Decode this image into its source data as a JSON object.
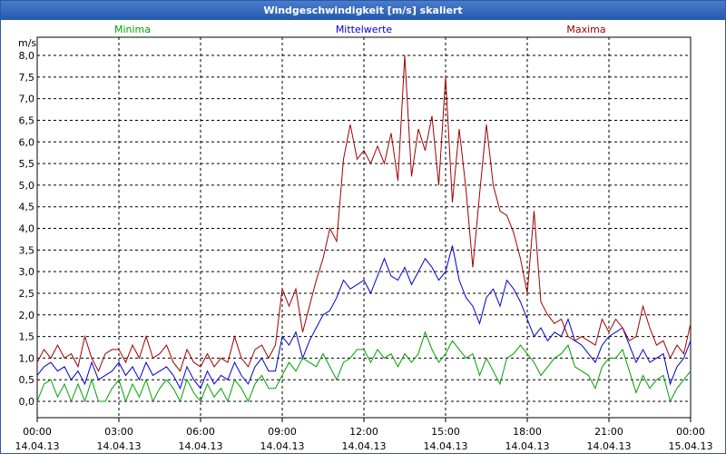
{
  "window": {
    "title": "Windgeschwindigkeit [m/s] skaliert"
  },
  "chart_data": {
    "type": "line",
    "title": "Windgeschwindigkeit [m/s] skaliert",
    "ylabel": "m/s",
    "xlabel": "",
    "ylim": [
      0,
      8
    ],
    "xlim": [
      0,
      24
    ],
    "grid": true,
    "legend_placement": "top",
    "yticks": [
      0,
      0.5,
      1,
      1.5,
      2,
      2.5,
      3,
      3.5,
      4,
      4.5,
      5,
      5.5,
      6,
      6.5,
      7,
      7.5,
      8
    ],
    "ytick_labels": [
      "0,0",
      "0,5",
      "1,0",
      "1,5",
      "2,0",
      "2,5",
      "3,0",
      "3,5",
      "4,0",
      "4,5",
      "5,0",
      "5,5",
      "6,0",
      "6,5",
      "7,0",
      "7,5",
      "8,0"
    ],
    "xticks": [
      0,
      3,
      6,
      9,
      12,
      15,
      18,
      21,
      24
    ],
    "xtick_times": [
      "00:00",
      "03:00",
      "06:00",
      "09:00",
      "12:00",
      "15:00",
      "18:00",
      "21:00",
      "00:00"
    ],
    "xtick_dates": [
      "14.04.13",
      "14.04.13",
      "14.04.13",
      "14.04.13",
      "14.04.13",
      "14.04.13",
      "14.04.13",
      "14.04.13",
      "15.04.13"
    ],
    "x": [
      0,
      0.25,
      0.5,
      0.75,
      1,
      1.25,
      1.5,
      1.75,
      2,
      2.25,
      2.5,
      2.75,
      3,
      3.25,
      3.5,
      3.75,
      4,
      4.25,
      4.5,
      4.75,
      5,
      5.25,
      5.5,
      5.75,
      6,
      6.25,
      6.5,
      6.75,
      7,
      7.25,
      7.5,
      7.75,
      8,
      8.25,
      8.5,
      8.75,
      9,
      9.25,
      9.5,
      9.75,
      10,
      10.25,
      10.5,
      10.75,
      11,
      11.25,
      11.5,
      11.75,
      12,
      12.25,
      12.5,
      12.75,
      13,
      13.25,
      13.5,
      13.75,
      14,
      14.25,
      14.5,
      14.75,
      15,
      15.25,
      15.5,
      15.75,
      16,
      16.25,
      16.5,
      16.75,
      17,
      17.25,
      17.5,
      17.75,
      18,
      18.25,
      18.5,
      18.75,
      19,
      19.25,
      19.5,
      19.75,
      20,
      20.25,
      20.5,
      20.75,
      21,
      21.25,
      21.5,
      21.75,
      22,
      22.25,
      22.5,
      22.75,
      23,
      23.25,
      23.5,
      23.75,
      24
    ],
    "series": [
      {
        "name": "Minima",
        "color": "#00a000",
        "values": [
          0,
          0.4,
          0.5,
          0.1,
          0.4,
          0,
          0.4,
          0,
          0.5,
          0,
          0,
          0.3,
          0.5,
          0,
          0.4,
          0.1,
          0.5,
          0,
          0.3,
          0.5,
          0.3,
          0,
          0.5,
          0.2,
          0,
          0.4,
          0.1,
          0.3,
          0,
          0.5,
          0.3,
          0,
          0.4,
          0.6,
          0.3,
          0.3,
          0.6,
          0.9,
          0.7,
          1.0,
          0.9,
          0.8,
          1.1,
          0.8,
          0.5,
          0.9,
          1.0,
          1.2,
          1.2,
          0.9,
          1.2,
          1.0,
          1.1,
          0.8,
          1.1,
          0.9,
          1.1,
          1.6,
          1.2,
          0.9,
          1.1,
          1.4,
          1.2,
          1.0,
          1.1,
          0.6,
          1.0,
          0.7,
          0.4,
          1.0,
          1.1,
          1.3,
          1.1,
          0.9,
          0.6,
          0.8,
          1.0,
          1.1,
          1.3,
          0.8,
          0.7,
          0.6,
          0.3,
          0.8,
          1.0,
          1.0,
          1.2,
          0.7,
          0.2,
          0.6,
          0.3,
          0.5,
          0.6,
          0,
          0.3,
          0.5,
          0.7
        ]
      },
      {
        "name": "Mittelwerte",
        "color": "#0000d0",
        "values": [
          0.6,
          0.8,
          0.9,
          0.7,
          0.8,
          0.5,
          0.7,
          0.4,
          0.9,
          0.5,
          0.6,
          0.7,
          0.9,
          0.6,
          0.8,
          0.5,
          0.9,
          0.6,
          0.7,
          0.8,
          0.6,
          0.3,
          0.8,
          0.5,
          0.3,
          0.7,
          0.4,
          0.6,
          0.5,
          0.9,
          0.6,
          0.4,
          0.8,
          1.0,
          0.7,
          0.7,
          1.5,
          1.3,
          1.6,
          1.0,
          1.4,
          1.7,
          2.0,
          2.1,
          2.4,
          2.8,
          2.6,
          2.7,
          2.8,
          2.5,
          2.9,
          3.3,
          2.9,
          2.8,
          3.1,
          2.7,
          3.0,
          3.3,
          3.1,
          2.8,
          3.0,
          3.6,
          2.8,
          2.4,
          2.2,
          1.8,
          2.4,
          2.6,
          2.2,
          2.8,
          2.6,
          2.3,
          1.9,
          1.5,
          1.7,
          1.4,
          1.6,
          1.5,
          1.9,
          1.4,
          1.3,
          1.1,
          0.9,
          1.3,
          1.5,
          1.6,
          1.7,
          1.3,
          0.9,
          1.2,
          0.9,
          1.0,
          1.1,
          0.4,
          0.8,
          1.0,
          1.4
        ]
      },
      {
        "name": "Maxima",
        "color": "#a00000",
        "values": [
          0.9,
          1.2,
          1.0,
          1.3,
          1.0,
          1.1,
          0.8,
          1.5,
          1.0,
          0.7,
          1.1,
          1.2,
          1.2,
          0.9,
          1.3,
          1.0,
          1.5,
          1.0,
          1.1,
          1.3,
          0.9,
          0.7,
          1.2,
          0.9,
          0.8,
          1.1,
          0.8,
          1.0,
          0.9,
          1.5,
          1.0,
          0.8,
          1.2,
          1.3,
          1.0,
          1.3,
          2.6,
          2.2,
          2.6,
          1.6,
          2.2,
          2.8,
          3.3,
          4.0,
          3.7,
          5.6,
          6.4,
          5.6,
          5.8,
          5.5,
          5.9,
          5.5,
          6.2,
          5.1,
          8.0,
          5.2,
          6.3,
          5.8,
          6.6,
          5.0,
          7.5,
          4.6,
          6.3,
          4.9,
          3.1,
          4.8,
          6.4,
          5.0,
          4.4,
          4.3,
          3.9,
          3.3,
          2.5,
          4.4,
          2.3,
          2.0,
          1.8,
          1.9,
          1.5,
          1.4,
          1.5,
          1.4,
          1.3,
          1.9,
          1.6,
          1.9,
          1.7,
          1.4,
          1.5,
          2.2,
          1.7,
          1.3,
          1.4,
          1.0,
          1.3,
          1.1,
          1.8
        ]
      }
    ]
  }
}
